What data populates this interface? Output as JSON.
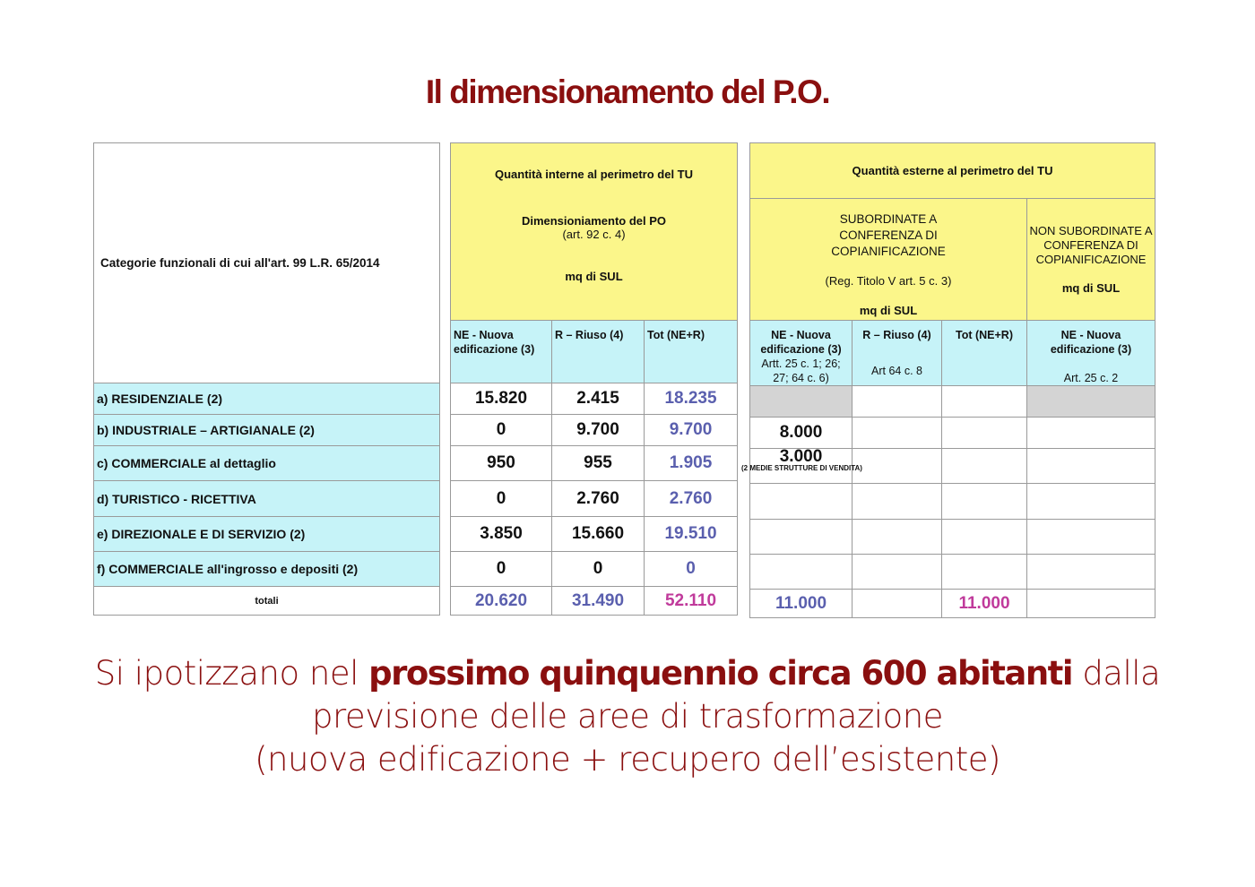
{
  "title": "Il dimensionamento del P.O.",
  "colors": {
    "title": "#8a0f0f",
    "header_yellow": "#fbf68a",
    "subheader_cyan": "#c6f3f8",
    "total_blue": "#5a5fae",
    "grand_total_magenta": "#c03a9b"
  },
  "table": {
    "category_header": "Categorie funzionali di cui all'art. 99 L.R. 65/2014",
    "internal": {
      "title": "Quantità interne al perimetro del TU",
      "subtitle": "Dimensioniamento del PO",
      "ref": "(art. 92 c. 4)",
      "unit": "mq di SUL",
      "columns": [
        "NE - Nuova edificazione (3)",
        "R – Riuso (4)",
        "Tot (NE+R)"
      ]
    },
    "external": {
      "title": "Quantità esterne al perimetro del TU",
      "sub": {
        "title": "SUBORDINATE A CONFERENZA DI COPIANIFICAZIONE",
        "ref": "(Reg. Titolo V art. 5 c. 3)",
        "unit": "mq di SUL"
      },
      "nonsub": {
        "title": "NON SUBORDINATE A CONFERENZA DI COPIANIFICAZIONE",
        "unit": "mq di SUL"
      },
      "columns": [
        {
          "label": "NE - Nuova edificazione (3)",
          "ref": "Artt. 25 c. 1; 26; 27; 64 c. 6)"
        },
        {
          "label": "R – Riuso (4)",
          "ref": "Art 64 c. 8"
        },
        {
          "label": "Tot (NE+R)",
          "ref": ""
        },
        {
          "label": "NE - Nuova edificazione (3)",
          "ref": "Art. 25 c. 2"
        }
      ]
    },
    "rows": [
      {
        "label": "a) RESIDENZIALE (2)",
        "ne": "15.820",
        "r": "2.415",
        "tot": "18.235",
        "ext_ne": "",
        "ext_r": "",
        "ext_tot": "",
        "ext_ns": "",
        "ext_ne_crossed": true,
        "ext_ns_crossed": true
      },
      {
        "label": "b) INDUSTRIALE – ARTIGIANALE (2)",
        "ne": "0",
        "r": "9.700",
        "tot": "9.700",
        "ext_ne": "8.000",
        "ext_r": "",
        "ext_tot": "",
        "ext_ns": ""
      },
      {
        "label": "c) COMMERCIALE al dettaglio",
        "ne": "950",
        "r": "955",
        "tot": "1.905",
        "ext_ne": "3.000",
        "ext_ne_note": "(2 MEDIE STRUTTURE DI VENDITA)",
        "ext_r": "",
        "ext_tot": "",
        "ext_ns": ""
      },
      {
        "label": "d) TURISTICO - RICETTIVA",
        "ne": "0",
        "r": "2.760",
        "tot": "2.760",
        "ext_ne": "",
        "ext_r": "",
        "ext_tot": "",
        "ext_ns": ""
      },
      {
        "label": "e) DIREZIONALE E DI SERVIZIO (2)",
        "ne": "3.850",
        "r": "15.660",
        "tot": "19.510",
        "ext_ne": "",
        "ext_r": "",
        "ext_tot": "",
        "ext_ns": ""
      },
      {
        "label": "f) COMMERCIALE all'ingrosso e depositi (2)",
        "ne": "0",
        "r": "0",
        "tot": "0",
        "ext_ne": "",
        "ext_r": "",
        "ext_tot": "",
        "ext_ns": ""
      }
    ],
    "totals": {
      "label": "totali",
      "ne": "20.620",
      "r": "31.490",
      "tot": "52.110",
      "ext_ne": "11.000",
      "ext_r": "",
      "ext_tot": "11.000",
      "ext_ns": ""
    }
  },
  "footer": {
    "line1_pre": "Si ipotizzano nel ",
    "line1_bold": "prossimo quinquennio circa 600 abitanti",
    "line1_post": " dalla",
    "line2": "previsione delle aree di trasformazione",
    "line3": "(nuova edificazione + recupero dell’esistente)"
  }
}
